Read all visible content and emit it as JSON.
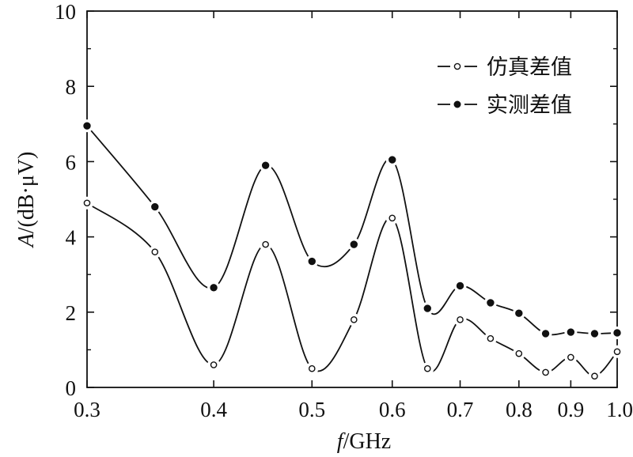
{
  "chart_data": {
    "type": "line",
    "xlabel_italic": "f",
    "xlabel_rest": "/GHz",
    "ylabel_italic": "A",
    "ylabel_rest": "/(dB·μV)",
    "xlim": [
      0.3,
      1.0
    ],
    "ylim": [
      0,
      10
    ],
    "x_axis_scale": "log",
    "x_ticks": [
      "0.3",
      "0.4",
      "0.5",
      "0.6",
      "0.7",
      "0.8",
      "0.9",
      "1.0"
    ],
    "y_ticks": [
      "0",
      "2",
      "4",
      "6",
      "8",
      "10"
    ],
    "legend_position": "top-right",
    "series": [
      {
        "name": "仿真差值",
        "marker": "open-circle",
        "x": [
          0.3,
          0.35,
          0.4,
          0.45,
          0.5,
          0.55,
          0.6,
          0.65,
          0.7,
          0.75,
          0.8,
          0.85,
          0.9,
          0.95,
          1.0
        ],
        "y": [
          4.9,
          3.6,
          0.6,
          3.8,
          0.5,
          1.8,
          4.5,
          0.5,
          1.8,
          1.3,
          0.9,
          0.4,
          0.8,
          0.3,
          0.95
        ]
      },
      {
        "name": "实测差值",
        "marker": "filled-circle",
        "x": [
          0.3,
          0.35,
          0.4,
          0.45,
          0.5,
          0.55,
          0.6,
          0.65,
          0.7,
          0.75,
          0.8,
          0.85,
          0.9,
          0.95,
          1.0
        ],
        "y": [
          6.95,
          4.8,
          2.65,
          5.9,
          3.35,
          3.8,
          6.05,
          2.1,
          2.7,
          2.25,
          1.97,
          1.43,
          1.47,
          1.43,
          1.45
        ]
      }
    ]
  }
}
